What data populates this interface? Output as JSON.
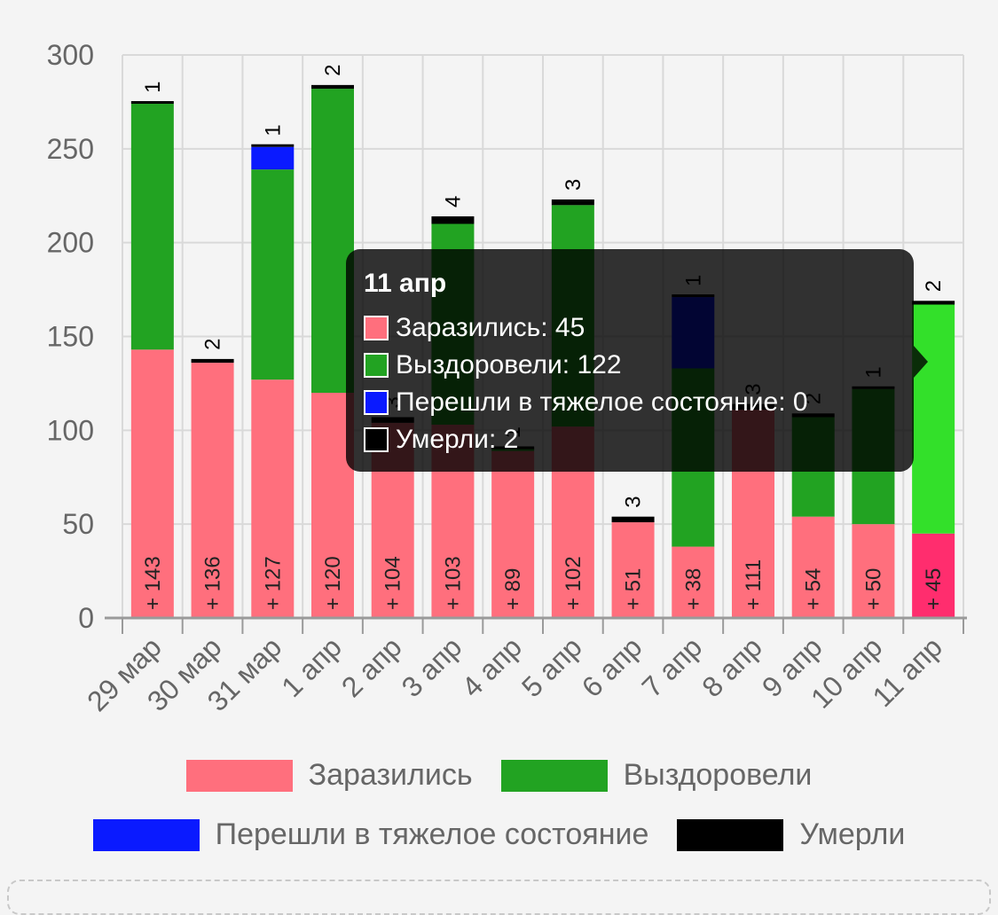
{
  "chart_data": {
    "type": "bar",
    "stacked": true,
    "categories": [
      "29 мар",
      "30 мар",
      "31 мар",
      "1 апр",
      "2 апр",
      "3 апр",
      "4 апр",
      "5 апр",
      "6 апр",
      "7 апр",
      "8 апр",
      "9 апр",
      "10 апр",
      "11 апр"
    ],
    "ylim": [
      0,
      300
    ],
    "yticks": [
      0,
      50,
      100,
      150,
      200,
      250,
      300
    ],
    "grid": true,
    "legend_position": "bottom",
    "series": [
      {
        "name": "Заразились",
        "color": "#ff6f7d",
        "values": [
          143,
          136,
          127,
          120,
          104,
          103,
          89,
          102,
          51,
          38,
          111,
          54,
          50,
          45
        ]
      },
      {
        "name": "Выздоровели",
        "color": "#22a322",
        "values": [
          131,
          0,
          112,
          162,
          0,
          107,
          1,
          118,
          0,
          95,
          0,
          53,
          72,
          122
        ]
      },
      {
        "name": "Перешли в тяжелое состояние",
        "color": "#0a1aff",
        "values": [
          0,
          0,
          12,
          0,
          0,
          0,
          0,
          0,
          0,
          38,
          0,
          0,
          0,
          0
        ]
      },
      {
        "name": "Умерли",
        "color": "#000000",
        "values": [
          1,
          2,
          1,
          2,
          3,
          4,
          1,
          3,
          3,
          1,
          3,
          2,
          1,
          2
        ]
      }
    ],
    "bar_labels": [
      "+ 143",
      "+ 136",
      "+ 127",
      "+ 120",
      "+ 104",
      "+ 103",
      "+ 89",
      "+ 102",
      "+ 51",
      "+ 38",
      "+ 111",
      "+ 54",
      "+ 50",
      "+ 45"
    ],
    "top_labels": [
      "1",
      "2",
      "1",
      "2",
      "3",
      "4",
      "1",
      "3",
      "3",
      "1",
      "3",
      "2",
      "1",
      "2"
    ],
    "highlighted_index": 13,
    "highlight_colors": [
      "#ff2d6e",
      "#33e02a",
      "#0a1aff",
      "#000000"
    ]
  },
  "tooltip": {
    "title": "11 апр",
    "rows": [
      {
        "label": "Заразились: 45",
        "color": "#ff6f7d"
      },
      {
        "label": "Выздоровели: 122",
        "color": "#22a322"
      },
      {
        "label": "Перешли в тяжелое состояние: 0",
        "color": "#0a1aff"
      },
      {
        "label": "Умерли: 2",
        "color": "#000000"
      }
    ]
  },
  "legend": [
    {
      "label": "Заразились",
      "color": "#ff6f7d"
    },
    {
      "label": "Выздоровели",
      "color": "#22a322"
    },
    {
      "label": "Перешли в тяжелое состояние",
      "color": "#0a1aff"
    },
    {
      "label": "Умерли",
      "color": "#000000"
    }
  ]
}
